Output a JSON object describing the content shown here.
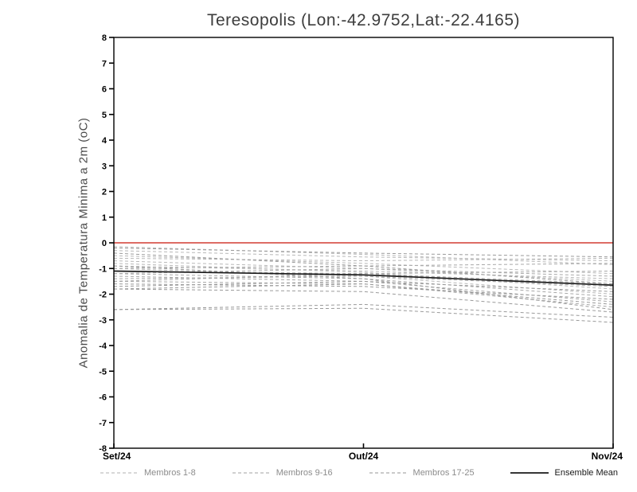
{
  "chart_data": {
    "type": "line",
    "title": "Teresopolis (Lon:-42.9752,Lat:-22.4165)",
    "xlabel": "",
    "ylabel": "Anomalia de Temperatura Minima a 2m (oC)",
    "x_categories": [
      "Set/24",
      "Out/24",
      "Nov/24"
    ],
    "ylim": [
      -8,
      8
    ],
    "ytick_step": 1,
    "grid": false,
    "zero_line": {
      "value": 0,
      "color": "#d23b32"
    },
    "groups": [
      {
        "name": "Membros 1-8",
        "style": "dashed",
        "color": "#b8b8b8",
        "members": [
          [
            -0.15,
            -0.45,
            -0.85
          ],
          [
            -0.3,
            -0.55,
            -0.7
          ],
          [
            -0.5,
            -0.8,
            -1.2
          ],
          [
            -0.6,
            -0.7,
            -0.6
          ],
          [
            -0.7,
            -1.0,
            -1.5
          ],
          [
            -0.8,
            -1.15,
            -1.8
          ],
          [
            -0.9,
            -1.1,
            -1.4
          ],
          [
            -1.0,
            -1.3,
            -2.0
          ]
        ]
      },
      {
        "name": "Membros 9-16",
        "style": "dashed",
        "color": "#a8a8a8",
        "members": [
          [
            -1.0,
            -0.9,
            -0.8
          ],
          [
            -1.1,
            -1.2,
            -1.6
          ],
          [
            -1.2,
            -1.4,
            -2.1
          ],
          [
            -1.2,
            -1.0,
            -1.3
          ],
          [
            -1.3,
            -1.5,
            -2.3
          ],
          [
            -1.4,
            -1.3,
            -1.7
          ],
          [
            -1.5,
            -1.6,
            -2.5
          ],
          [
            -1.5,
            -1.2,
            -1.1
          ]
        ]
      },
      {
        "name": "Membros 17-25",
        "style": "dashed",
        "color": "#9a9a9a",
        "members": [
          [
            -1.6,
            -1.7,
            -2.2
          ],
          [
            -1.7,
            -1.5,
            -1.9
          ],
          [
            -1.8,
            -1.9,
            -2.7
          ],
          [
            -1.8,
            -1.6,
            -2.4
          ],
          [
            -0.4,
            -0.9,
            -1.6
          ],
          [
            -0.2,
            -0.4,
            -0.55
          ],
          [
            -2.6,
            -2.4,
            -2.9
          ],
          [
            -2.6,
            -2.55,
            -3.1
          ],
          [
            -0.9,
            -1.4,
            -2.6
          ]
        ]
      }
    ],
    "mean": {
      "name": "Ensemble Mean",
      "style": "solid",
      "color": "#1a1a1a",
      "values": [
        -1.1,
        -1.25,
        -1.65
      ]
    },
    "legend_position": "bottom"
  },
  "legend": {
    "items": [
      {
        "label": "Membros 1-8",
        "color": "#b0b0b0",
        "dash": "4 3",
        "width": 1,
        "label_color": "#8c8c8c"
      },
      {
        "label": "Membros 9-16",
        "color": "#a0a0a0",
        "dash": "4 3",
        "width": 1,
        "label_color": "#8c8c8c"
      },
      {
        "label": "Membros 17-25",
        "color": "#969696",
        "dash": "4 3",
        "width": 1,
        "label_color": "#8c8c8c"
      },
      {
        "label": "Ensemble Mean",
        "color": "#1a1a1a",
        "dash": "",
        "width": 1.8,
        "label_color": "#1a1a1a"
      }
    ]
  }
}
